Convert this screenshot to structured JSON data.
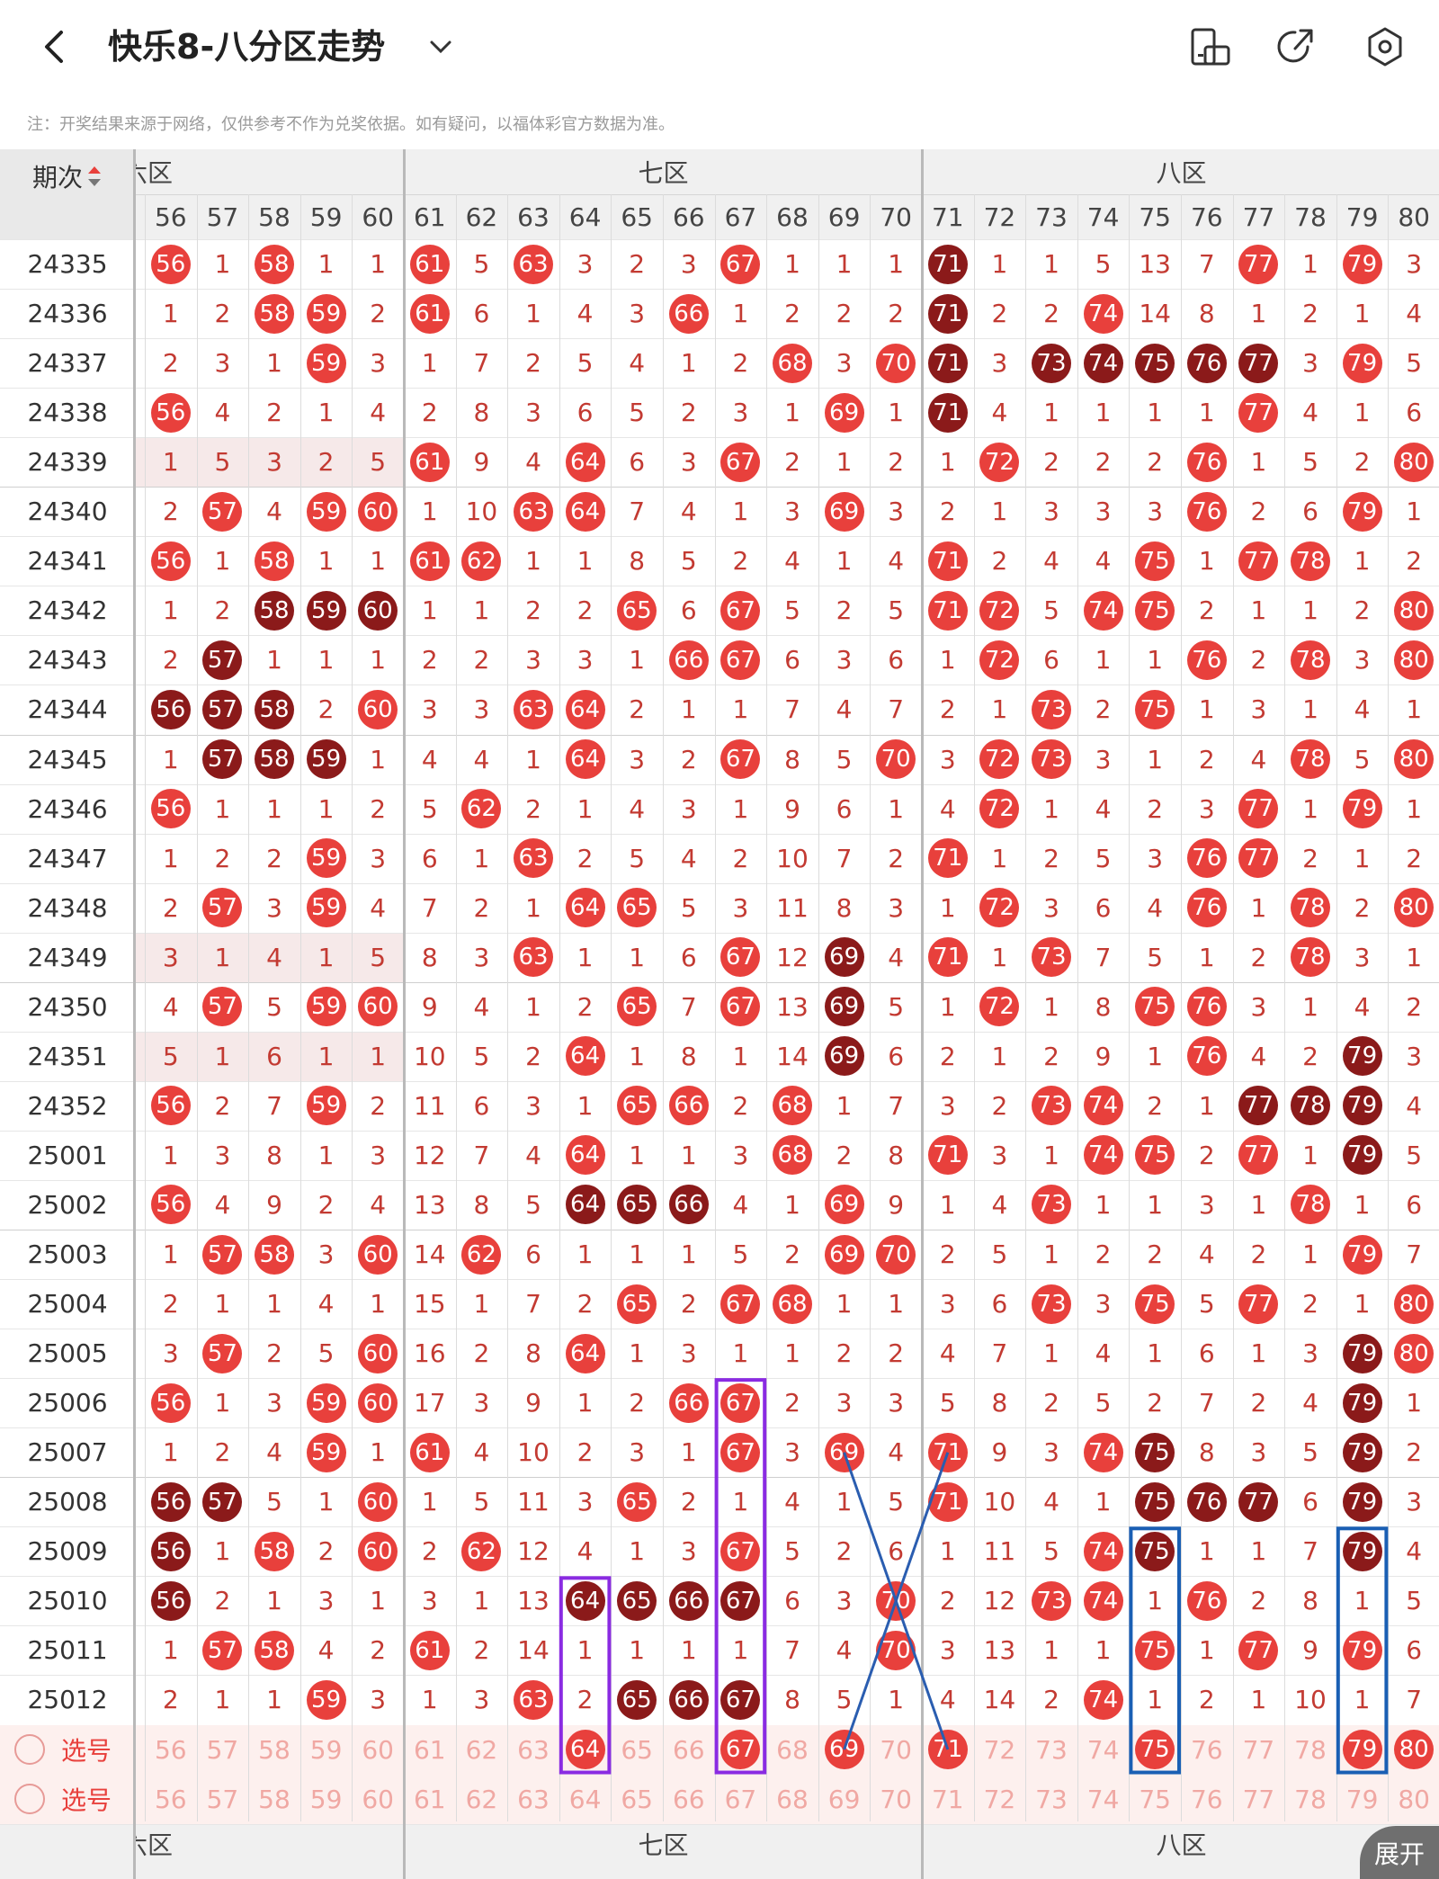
{
  "header": {
    "title": "快乐8-八分区走势",
    "note": "注：开奖结果来源于网络，仅供参考不作为兑奖依据。如有疑问，以福体彩官方数据为准。"
  },
  "table": {
    "period_header": "期次",
    "zones": [
      "六区",
      "七区",
      "八区"
    ],
    "columns": [
      56,
      57,
      58,
      59,
      60,
      61,
      62,
      63,
      64,
      65,
      66,
      67,
      68,
      69,
      70,
      71,
      72,
      73,
      74,
      75,
      76,
      77,
      78,
      79,
      80
    ],
    "rows": [
      {
        "p": "24335",
        "v": [
          "*56",
          "1",
          "*58",
          "1",
          "1",
          "*61",
          "5",
          "*63",
          "3",
          "2",
          "3",
          "*67",
          "1",
          "1",
          "1",
          "#71",
          "1",
          "1",
          "5",
          "13",
          "7",
          "*77",
          "1",
          "*79",
          "3"
        ]
      },
      {
        "p": "24336",
        "v": [
          "1",
          "2",
          "*58",
          "*59",
          "2",
          "*61",
          "6",
          "1",
          "4",
          "3",
          "*66",
          "1",
          "2",
          "2",
          "2",
          "#71",
          "2",
          "2",
          "*74",
          "14",
          "8",
          "1",
          "2",
          "1",
          "4"
        ]
      },
      {
        "p": "24337",
        "v": [
          "2",
          "3",
          "1",
          "*59",
          "3",
          "1",
          "7",
          "2",
          "5",
          "4",
          "1",
          "2",
          "*68",
          "3",
          "*70",
          "#71",
          "3",
          "#73",
          "#74",
          "#75",
          "#76",
          "#77",
          "3",
          "*79",
          "5"
        ]
      },
      {
        "p": "24338",
        "v": [
          "*56",
          "4",
          "2",
          "1",
          "4",
          "2",
          "8",
          "3",
          "6",
          "5",
          "2",
          "3",
          "1",
          "*69",
          "1",
          "#71",
          "4",
          "1",
          "1",
          "1",
          "1",
          "*77",
          "4",
          "1",
          "6"
        ]
      },
      {
        "p": "24339",
        "v": [
          "1",
          "5",
          "3",
          "2",
          "5",
          "*61",
          "9",
          "4",
          "*64",
          "6",
          "3",
          "*67",
          "2",
          "1",
          "2",
          "1",
          "*72",
          "2",
          "2",
          "2",
          "*76",
          "1",
          "5",
          "2",
          "*80"
        ]
      },
      {
        "p": "24340",
        "v": [
          "2",
          "*57",
          "4",
          "*59",
          "*60",
          "1",
          "10",
          "*63",
          "*64",
          "7",
          "4",
          "1",
          "3",
          "*69",
          "3",
          "2",
          "1",
          "3",
          "3",
          "3",
          "*76",
          "2",
          "6",
          "*79",
          "1"
        ]
      },
      {
        "p": "24341",
        "v": [
          "*56",
          "1",
          "*58",
          "1",
          "1",
          "*61",
          "*62",
          "1",
          "1",
          "8",
          "5",
          "2",
          "4",
          "1",
          "4",
          "*71",
          "2",
          "4",
          "4",
          "*75",
          "1",
          "*77",
          "*78",
          "1",
          "2"
        ]
      },
      {
        "p": "24342",
        "v": [
          "1",
          "2",
          "#58",
          "#59",
          "#60",
          "1",
          "1",
          "2",
          "2",
          "*65",
          "6",
          "*67",
          "5",
          "2",
          "5",
          "*71",
          "*72",
          "5",
          "*74",
          "*75",
          "2",
          "1",
          "1",
          "2",
          "*80"
        ]
      },
      {
        "p": "24343",
        "v": [
          "2",
          "#57",
          "1",
          "1",
          "1",
          "2",
          "2",
          "3",
          "3",
          "1",
          "*66",
          "*67",
          "6",
          "3",
          "6",
          "1",
          "*72",
          "6",
          "1",
          "1",
          "*76",
          "2",
          "*78",
          "3",
          "*80"
        ]
      },
      {
        "p": "24344",
        "v": [
          "#56",
          "#57",
          "#58",
          "2",
          "*60",
          "3",
          "3",
          "*63",
          "*64",
          "2",
          "1",
          "1",
          "7",
          "4",
          "7",
          "2",
          "1",
          "*73",
          "2",
          "*75",
          "1",
          "3",
          "1",
          "4",
          "1"
        ]
      },
      {
        "p": "24345",
        "v": [
          "1",
          "#57",
          "#58",
          "#59",
          "1",
          "4",
          "4",
          "1",
          "*64",
          "3",
          "2",
          "*67",
          "8",
          "5",
          "*70",
          "3",
          "*72",
          "*73",
          "3",
          "1",
          "2",
          "4",
          "*78",
          "5",
          "*80"
        ]
      },
      {
        "p": "24346",
        "v": [
          "*56",
          "1",
          "1",
          "1",
          "2",
          "5",
          "*62",
          "2",
          "1",
          "4",
          "3",
          "1",
          "9",
          "6",
          "1",
          "4",
          "*72",
          "1",
          "4",
          "2",
          "3",
          "*77",
          "1",
          "*79",
          "1"
        ]
      },
      {
        "p": "24347",
        "v": [
          "1",
          "2",
          "2",
          "*59",
          "3",
          "6",
          "1",
          "*63",
          "2",
          "5",
          "4",
          "2",
          "10",
          "7",
          "2",
          "*71",
          "1",
          "2",
          "5",
          "3",
          "*76",
          "*77",
          "2",
          "1",
          "2"
        ]
      },
      {
        "p": "24348",
        "v": [
          "2",
          "*57",
          "3",
          "*59",
          "4",
          "7",
          "2",
          "1",
          "*64",
          "*65",
          "5",
          "3",
          "11",
          "8",
          "3",
          "1",
          "*72",
          "3",
          "6",
          "4",
          "*76",
          "1",
          "*78",
          "2",
          "*80"
        ]
      },
      {
        "p": "24349",
        "v": [
          "3",
          "1",
          "4",
          "1",
          "5",
          "8",
          "3",
          "*63",
          "1",
          "1",
          "6",
          "*67",
          "12",
          "#69",
          "4",
          "*71",
          "1",
          "*73",
          "7",
          "5",
          "1",
          "2",
          "*78",
          "3",
          "1"
        ]
      },
      {
        "p": "24350",
        "v": [
          "4",
          "*57",
          "5",
          "*59",
          "*60",
          "9",
          "4",
          "1",
          "2",
          "*65",
          "7",
          "*67",
          "13",
          "#69",
          "5",
          "1",
          "*72",
          "1",
          "8",
          "*75",
          "*76",
          "3",
          "1",
          "4",
          "2"
        ]
      },
      {
        "p": "24351",
        "v": [
          "5",
          "1",
          "6",
          "1",
          "1",
          "10",
          "5",
          "2",
          "*64",
          "1",
          "8",
          "1",
          "14",
          "#69",
          "6",
          "2",
          "1",
          "2",
          "9",
          "1",
          "*76",
          "4",
          "2",
          "#79",
          "3"
        ]
      },
      {
        "p": "24352",
        "v": [
          "*56",
          "2",
          "7",
          "*59",
          "2",
          "11",
          "6",
          "3",
          "1",
          "*65",
          "*66",
          "2",
          "*68",
          "1",
          "7",
          "3",
          "2",
          "*73",
          "*74",
          "2",
          "1",
          "#77",
          "#78",
          "#79",
          "4"
        ]
      },
      {
        "p": "25001",
        "v": [
          "1",
          "3",
          "8",
          "1",
          "3",
          "12",
          "7",
          "4",
          "*64",
          "1",
          "1",
          "3",
          "*68",
          "2",
          "8",
          "*71",
          "3",
          "1",
          "*74",
          "*75",
          "2",
          "*77",
          "1",
          "#79",
          "5"
        ]
      },
      {
        "p": "25002",
        "v": [
          "*56",
          "4",
          "9",
          "2",
          "4",
          "13",
          "8",
          "5",
          "#64",
          "#65",
          "#66",
          "4",
          "1",
          "*69",
          "9",
          "1",
          "4",
          "*73",
          "1",
          "1",
          "3",
          "1",
          "*78",
          "1",
          "6"
        ]
      },
      {
        "p": "25003",
        "v": [
          "1",
          "*57",
          "*58",
          "3",
          "*60",
          "14",
          "*62",
          "6",
          "1",
          "1",
          "1",
          "5",
          "2",
          "*69",
          "*70",
          "2",
          "5",
          "1",
          "2",
          "2",
          "4",
          "2",
          "1",
          "*79",
          "7"
        ]
      },
      {
        "p": "25004",
        "v": [
          "2",
          "1",
          "1",
          "4",
          "1",
          "15",
          "1",
          "7",
          "2",
          "*65",
          "2",
          "*67",
          "*68",
          "1",
          "1",
          "3",
          "6",
          "*73",
          "3",
          "*75",
          "5",
          "*77",
          "2",
          "1",
          "*80"
        ]
      },
      {
        "p": "25005",
        "v": [
          "3",
          "*57",
          "2",
          "5",
          "*60",
          "16",
          "2",
          "8",
          "*64",
          "1",
          "3",
          "1",
          "1",
          "2",
          "2",
          "4",
          "7",
          "1",
          "4",
          "1",
          "6",
          "1",
          "3",
          "#79",
          "*80"
        ]
      },
      {
        "p": "25006",
        "v": [
          "*56",
          "1",
          "3",
          "*59",
          "*60",
          "17",
          "3",
          "9",
          "1",
          "2",
          "*66",
          "*67",
          "2",
          "3",
          "3",
          "5",
          "8",
          "2",
          "5",
          "2",
          "7",
          "2",
          "4",
          "#79",
          "1"
        ]
      },
      {
        "p": "25007",
        "v": [
          "1",
          "2",
          "4",
          "*59",
          "1",
          "*61",
          "4",
          "10",
          "2",
          "3",
          "1",
          "*67",
          "3",
          "*69",
          "4",
          "*71",
          "9",
          "3",
          "*74",
          "#75",
          "8",
          "3",
          "5",
          "#79",
          "2"
        ]
      },
      {
        "p": "25008",
        "v": [
          "#56",
          "#57",
          "5",
          "1",
          "*60",
          "1",
          "5",
          "11",
          "3",
          "*65",
          "2",
          "1",
          "4",
          "1",
          "5",
          "*71",
          "10",
          "4",
          "1",
          "#75",
          "#76",
          "#77",
          "6",
          "#79",
          "3"
        ]
      },
      {
        "p": "25009",
        "v": [
          "#56",
          "1",
          "*58",
          "2",
          "*60",
          "2",
          "*62",
          "12",
          "4",
          "1",
          "3",
          "*67",
          "5",
          "2",
          "6",
          "1",
          "11",
          "5",
          "*74",
          "#75",
          "1",
          "1",
          "7",
          "#79",
          "4"
        ]
      },
      {
        "p": "25010",
        "v": [
          "#56",
          "2",
          "1",
          "3",
          "1",
          "3",
          "1",
          "13",
          "#64",
          "#65",
          "#66",
          "#67",
          "6",
          "3",
          "*70",
          "2",
          "12",
          "*73",
          "*74",
          "1",
          "*76",
          "2",
          "8",
          "1",
          "5"
        ]
      },
      {
        "p": "25011",
        "v": [
          "1",
          "*57",
          "*58",
          "4",
          "2",
          "*61",
          "2",
          "14",
          "1",
          "1",
          "1",
          "1",
          "7",
          "4",
          "*70",
          "3",
          "13",
          "1",
          "1",
          "*75",
          "1",
          "*77",
          "9",
          "*79",
          "6"
        ]
      },
      {
        "p": "25012",
        "v": [
          "2",
          "1",
          "1",
          "*59",
          "3",
          "1",
          "3",
          "*63",
          "2",
          "#65",
          "#66",
          "#67",
          "8",
          "5",
          "1",
          "4",
          "14",
          "2",
          "*74",
          "1",
          "2",
          "1",
          "10",
          "1",
          "7"
        ]
      }
    ],
    "select_label": "选号",
    "select_row1_picked": [
      64,
      67,
      69,
      71,
      75,
      79,
      80
    ],
    "expand_label": "展开"
  },
  "colors": {
    "ball_red": "#e8403c",
    "ball_dark": "#8b1a1a",
    "box_purple": "#8a2be2",
    "box_blue": "#1a5fb4",
    "cross_blue": "#2a5db0"
  }
}
